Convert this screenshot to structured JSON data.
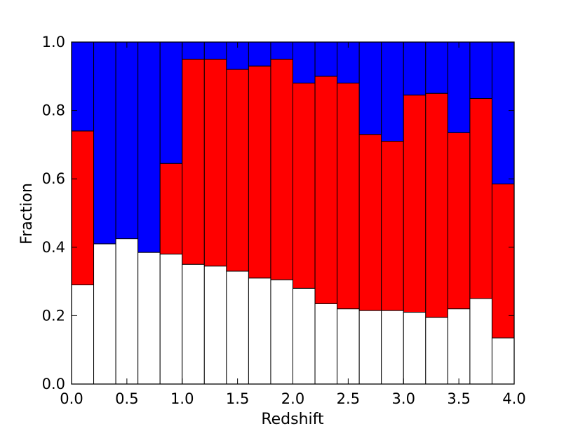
{
  "chart_data": {
    "type": "bar",
    "stacked": true,
    "xlabel": "Redshift",
    "ylabel": "Fraction",
    "xlim": [
      0.0,
      4.0
    ],
    "ylim": [
      0.0,
      1.0
    ],
    "bin_width": 0.2,
    "x_ticks": [
      "0.0",
      "0.5",
      "1.0",
      "1.5",
      "2.0",
      "2.5",
      "3.0",
      "3.5",
      "4.0"
    ],
    "y_ticks": [
      "0.0",
      "0.2",
      "0.4",
      "0.6",
      "0.8",
      "1.0"
    ],
    "grid": false,
    "bin_edges": [
      0.0,
      0.2,
      0.4,
      0.6,
      0.8,
      1.0,
      1.2,
      1.4,
      1.6,
      1.8,
      2.0,
      2.2,
      2.4,
      2.6,
      2.8,
      3.0,
      3.2,
      3.4,
      3.6,
      3.8,
      4.0
    ],
    "series": [
      {
        "color": "#ffffff",
        "values": [
          0.29,
          0.41,
          0.425,
          0.385,
          0.38,
          0.35,
          0.345,
          0.33,
          0.31,
          0.305,
          0.28,
          0.235,
          0.22,
          0.215,
          0.215,
          0.21,
          0.195,
          0.22,
          0.25,
          0.135
        ]
      },
      {
        "color": "#ff0000",
        "values": [
          0.45,
          0.0,
          0.0,
          0.0,
          0.265,
          0.6,
          0.605,
          0.59,
          0.62,
          0.645,
          0.6,
          0.665,
          0.66,
          0.515,
          0.495,
          0.635,
          0.655,
          0.515,
          0.585,
          0.45
        ]
      },
      {
        "color": "#0000ff",
        "values": [
          0.26,
          0.59,
          0.575,
          0.615,
          0.355,
          0.05,
          0.05,
          0.08,
          0.07,
          0.05,
          0.12,
          0.1,
          0.12,
          0.27,
          0.29,
          0.155,
          0.15,
          0.265,
          0.165,
          0.415
        ]
      }
    ]
  }
}
